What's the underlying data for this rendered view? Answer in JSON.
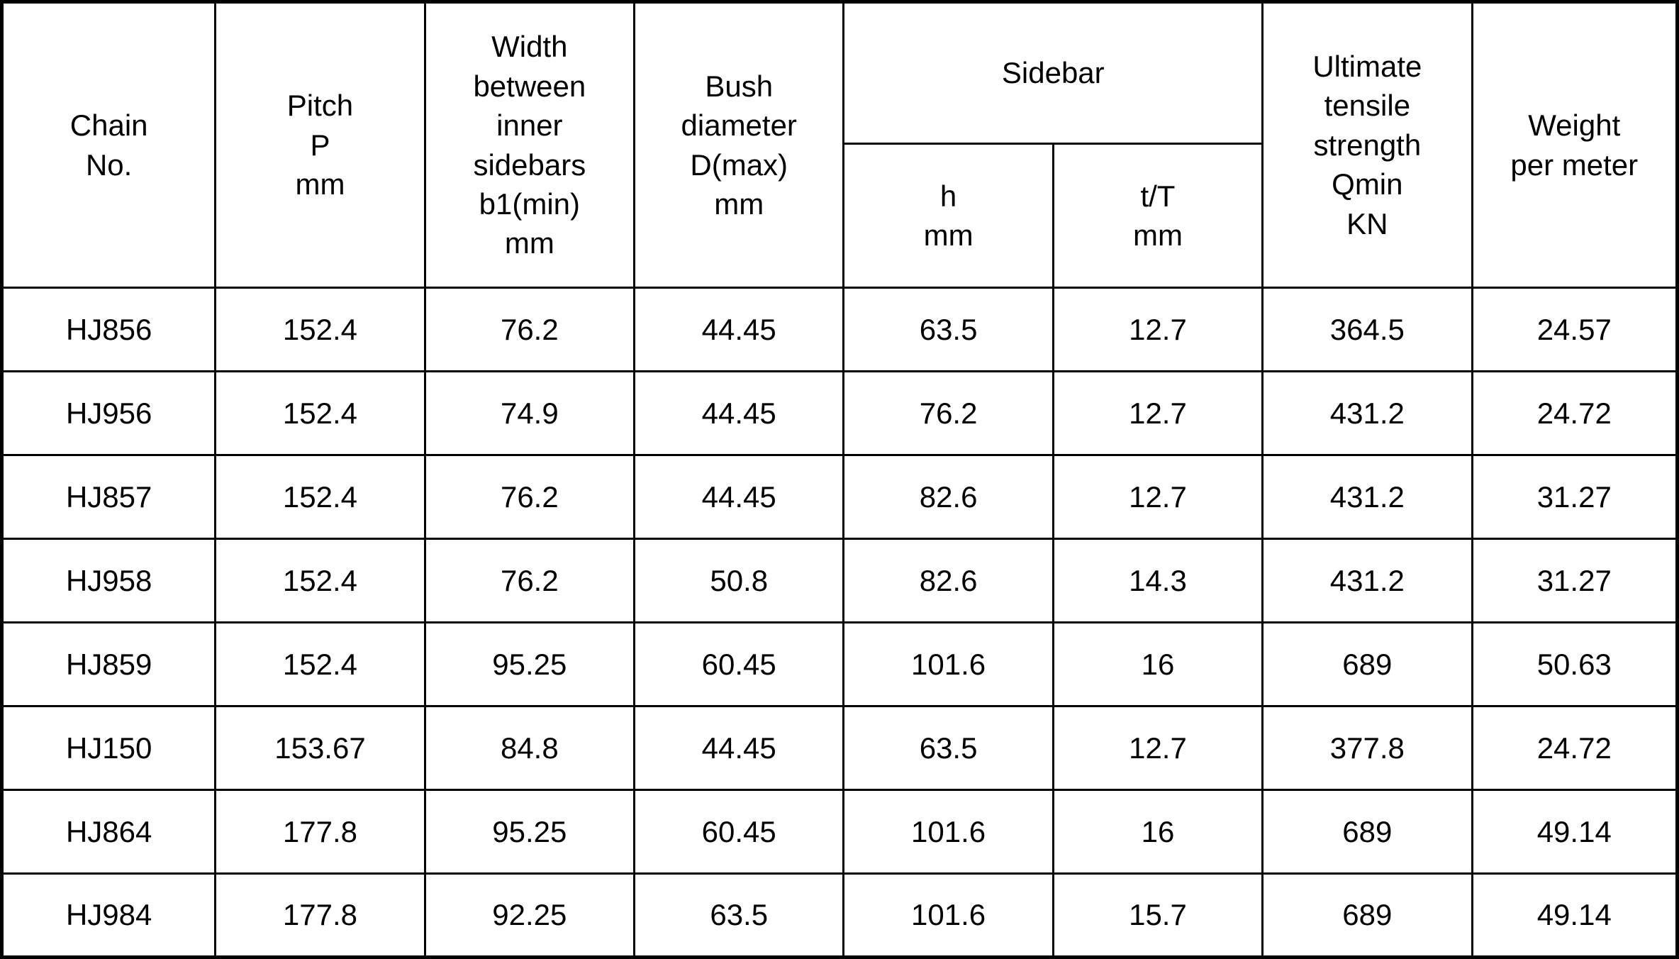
{
  "table": {
    "title": "chain-specification-table",
    "colors": {
      "border": "#000000",
      "text": "#000000",
      "background": "#ffffff"
    },
    "headers": {
      "chain_no": "Chain\nNo.",
      "pitch": "Pitch\nP\nmm",
      "width_between_inner_sidebars": "Width\nbetween\ninner\nsidebars\nb1(min)\nmm",
      "bush_diameter": "Bush\ndiameter\nD(max)\nmm",
      "sidebar_group": "Sidebar",
      "sidebar_h": "h\nmm",
      "sidebar_t": "t/T\nmm",
      "ultimate_tensile_strength": "Ultimate\ntensile\nstrength\nQmin\nKN",
      "weight_per_meter": "Weight\nper meter"
    },
    "rows": [
      [
        "HJ856",
        "152.4",
        "76.2",
        "44.45",
        "63.5",
        "12.7",
        "364.5",
        "24.57"
      ],
      [
        "HJ956",
        "152.4",
        "74.9",
        "44.45",
        "76.2",
        "12.7",
        "431.2",
        "24.72"
      ],
      [
        "HJ857",
        "152.4",
        "76.2",
        "44.45",
        "82.6",
        "12.7",
        "431.2",
        "31.27"
      ],
      [
        "HJ958",
        "152.4",
        "76.2",
        "50.8",
        "82.6",
        "14.3",
        "431.2",
        "31.27"
      ],
      [
        "HJ859",
        "152.4",
        "95.25",
        "60.45",
        "101.6",
        "16",
        "689",
        "50.63"
      ],
      [
        "HJ150",
        "153.67",
        "84.8",
        "44.45",
        "63.5",
        "12.7",
        "377.8",
        "24.72"
      ],
      [
        "HJ864",
        "177.8",
        "95.25",
        "60.45",
        "101.6",
        "16",
        "689",
        "49.14"
      ],
      [
        "HJ984",
        "177.8",
        "92.25",
        "63.5",
        "101.6",
        "15.7",
        "689",
        "49.14"
      ]
    ]
  }
}
